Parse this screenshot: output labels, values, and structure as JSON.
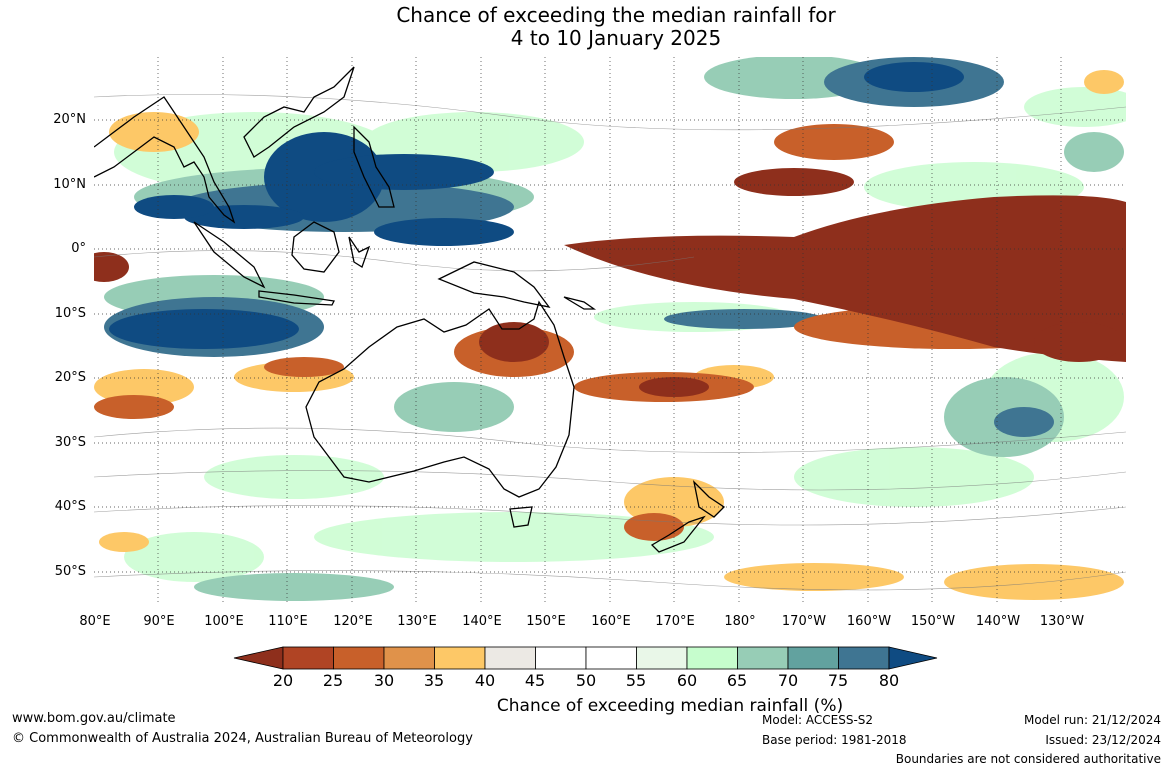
{
  "title": {
    "line1": "Chance of exceeding the median rainfall for",
    "line2": "4 to 10 January 2025"
  },
  "map": {
    "lat_labels": [
      "20°N",
      "10°N",
      "0°",
      "10°S",
      "20°S",
      "30°S",
      "40°S",
      "50°S"
    ],
    "lon_labels": [
      "80°E",
      "90°E",
      "100°E",
      "110°E",
      "120°E",
      "130°E",
      "140°E",
      "150°E",
      "160°E",
      "170°E",
      "180°",
      "170°W",
      "160°W",
      "150°W",
      "140°W",
      "130°W"
    ]
  },
  "legend": {
    "ticks": [
      "20",
      "25",
      "30",
      "35",
      "40",
      "45",
      "50",
      "55",
      "60",
      "65",
      "70",
      "75",
      "80"
    ],
    "title": "Chance of exceeding median rainfall (%)",
    "colors": [
      "#8e2f1c",
      "#b04424",
      "#c8602a",
      "#e0924a",
      "#fdc867",
      "#ece9e4",
      "#ffffff",
      "#ffffff",
      "#e9f7e8",
      "#c6fdcd",
      "#97cdb6",
      "#62a29f",
      "#3f7592",
      "#0f4b82"
    ]
  },
  "footer": {
    "website": "www.bom.gov.au/climate",
    "copyright": "© Commonwealth of Australia 2024, Australian Bureau of Meteorology",
    "model": "Model: ACCESS-S2",
    "base_period": "Base period: 1981-2018",
    "model_run": "Model run: 21/12/2024",
    "issued": "Issued: 23/12/2024",
    "boundaries": "Boundaries are not considered authoritative"
  }
}
